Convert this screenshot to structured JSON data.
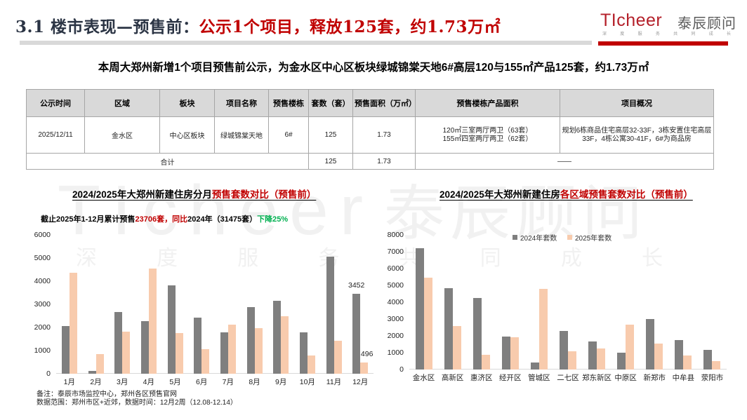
{
  "header": {
    "title_prefix": "3.1 楼市表现—预售前：",
    "title_highlight": "公示1个项目，释放125套，约1.73万㎡"
  },
  "logo": {
    "brand": "TIcheer",
    "brand_cn": "泰辰顾问",
    "slogan": [
      "深",
      "度",
      "服",
      "务",
      "共",
      "同",
      "成",
      "长"
    ]
  },
  "watermark": {
    "brand": "TIcheer",
    "brand_cn": "泰辰顾问",
    "slogan": [
      "深",
      "度",
      "服",
      "务",
      "共",
      "同",
      "成",
      "长"
    ]
  },
  "summary": "本周大郑州新增1个项目预售前公示，为金水区中心区板块绿城锦棠天地6#高层120与155㎡产品125套，约1.73万㎡",
  "table": {
    "headers": [
      "公示时间",
      "区域",
      "板块",
      "项目名称",
      "预售楼栋",
      "套数（套）",
      "预售面积（万㎡）",
      "预售楼栋产品面积",
      "项目概况"
    ],
    "rows": [
      {
        "date": "2025/12/11",
        "district": "金水区",
        "block": "中心区板块",
        "project": "绿城锦棠天地",
        "building": "6#",
        "units": "125",
        "area": "1.73",
        "products": [
          "120㎡三室两厅两卫（63套）",
          "155㎡四室两厅两卫（62套）"
        ],
        "overview": "规划6栋商品住宅高层32-33F，3栋安置住宅高层33F，4栋公寓30-41F，6#为商品房"
      }
    ],
    "total": {
      "label": "合计",
      "units": "125",
      "area": "1.73",
      "dash": "——"
    }
  },
  "left_chart": {
    "title_black": "2024/2025年大郑州新建住房分月",
    "title_red": "预售套数对比（预售前）",
    "subtitle": {
      "part1": "截止2025年1-12月累计预售",
      "part2_red": "23706套，同比",
      "part3": "2024年（31475套）",
      "part4_green": "下降25%"
    }
  },
  "right_chart": {
    "title_black": "2024/2025年大郑州新建住房",
    "title_red": "各区域预售套数对比（预售前）",
    "legend": [
      "2024年套数",
      "2025年套数"
    ]
  },
  "colors": {
    "series_2024": "#7f7f7f",
    "series_2025": "#f8cbad",
    "accent_red": "#c00000",
    "accent_green": "#00b050",
    "title_dark": "#2b3444"
  },
  "chart_data": [
    {
      "type": "bar",
      "title": "2024/2025年大郑州新建住房分月预售套数对比（预售前）",
      "xlabel": "",
      "ylabel": "",
      "categories": [
        "1月",
        "2月",
        "3月",
        "4月",
        "5月",
        "6月",
        "7月",
        "8月",
        "9月",
        "10月",
        "11月",
        "12月"
      ],
      "series": [
        {
          "name": "2024年",
          "values": [
            2070,
            110,
            2670,
            2273,
            3820,
            2430,
            1780,
            2880,
            3150,
            1780,
            5060,
            3452
          ]
        },
        {
          "name": "2025年",
          "values": [
            4360,
            840,
            1820,
            4550,
            1770,
            1060,
            2130,
            1980,
            2500,
            780,
            1420,
            496
          ]
        }
      ],
      "ylim": [
        0,
        6000
      ],
      "yticks": [
        0,
        1000,
        2000,
        3000,
        4000,
        5000,
        6000
      ],
      "data_labels": [
        {
          "series": 0,
          "index": 11,
          "text": "3452"
        },
        {
          "series": 1,
          "index": 11,
          "text": "496"
        }
      ],
      "grid": false,
      "legend_position": "none"
    },
    {
      "type": "bar",
      "title": "2024/2025年大郑州新建住房各区域预售套数对比（预售前）",
      "xlabel": "",
      "ylabel": "",
      "categories": [
        "金水区",
        "高新区",
        "惠济区",
        "经开区",
        "管城区",
        "二七区",
        "郑东新区",
        "中原区",
        "新郑市",
        "中牟县",
        "荥阳市"
      ],
      "series": [
        {
          "name": "2024年套数",
          "values": [
            7190,
            4850,
            4240,
            1950,
            400,
            2280,
            1680,
            1020,
            2980,
            1770,
            1160
          ]
        },
        {
          "name": "2025年套数",
          "values": [
            5450,
            2600,
            890,
            1910,
            4780,
            1070,
            1270,
            2660,
            1560,
            820,
            480
          ]
        }
      ],
      "ylim": [
        0,
        8000
      ],
      "yticks": [
        0,
        1000,
        2000,
        3000,
        4000,
        5000,
        6000,
        7000,
        8000
      ],
      "data_labels": [],
      "grid": false,
      "legend_position": "top"
    }
  ],
  "footnotes": [
    "备注：泰辰市场监控中心，郑州各区预售官网",
    "数据范围：郑州市区+近郊，数据时间：12月2周（12.08-12.14）"
  ]
}
